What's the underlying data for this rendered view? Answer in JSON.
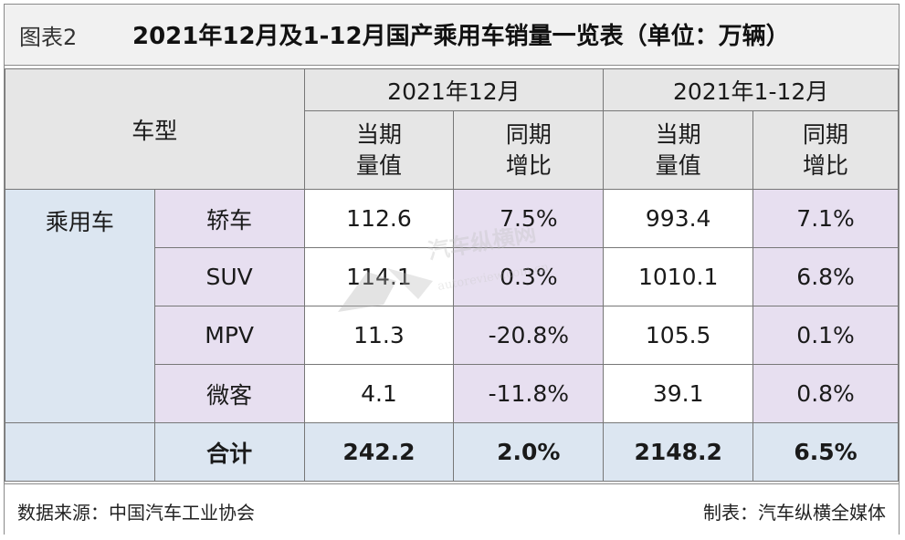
{
  "title": {
    "figure_no": "图表2",
    "text": "2021年12月及1-12月国产乘用车销量一览表（单位：万辆）"
  },
  "header": {
    "vehicle_type": "车型",
    "period_dec": "2021年12月",
    "period_year": "2021年1-12月",
    "current_line1": "当期",
    "current_line2": "量值",
    "yoy_line1": "同期",
    "yoy_line2": "增比"
  },
  "category": "乘用车",
  "rows": [
    {
      "type": "轿车",
      "dec_value": "112.6",
      "dec_yoy": "7.5%",
      "year_value": "993.4",
      "year_yoy": "7.1%"
    },
    {
      "type": "SUV",
      "dec_value": "114.1",
      "dec_yoy": "0.3%",
      "year_value": "1010.1",
      "year_yoy": "6.8%"
    },
    {
      "type": "MPV",
      "dec_value": "11.3",
      "dec_yoy": "-20.8%",
      "year_value": "105.5",
      "year_yoy": "0.1%"
    },
    {
      "type": "微客",
      "dec_value": "4.1",
      "dec_yoy": "-11.8%",
      "year_value": "39.1",
      "year_yoy": "0.8%"
    }
  ],
  "total": {
    "label": "合计",
    "dec_value": "242.2",
    "dec_yoy": "2.0%",
    "year_value": "2148.2",
    "year_yoy": "6.5%"
  },
  "footer": {
    "source": "数据来源：中国汽车工业协会",
    "maker": "制表：汽车纵横全媒体"
  },
  "watermark": {
    "cn": "汽车纵横网",
    "en": "autoreview.com.cn"
  },
  "colors": {
    "header_bg": "#e6e6e6",
    "blue_bg": "#dce6f1",
    "pink_bg": "#e7dff0"
  }
}
